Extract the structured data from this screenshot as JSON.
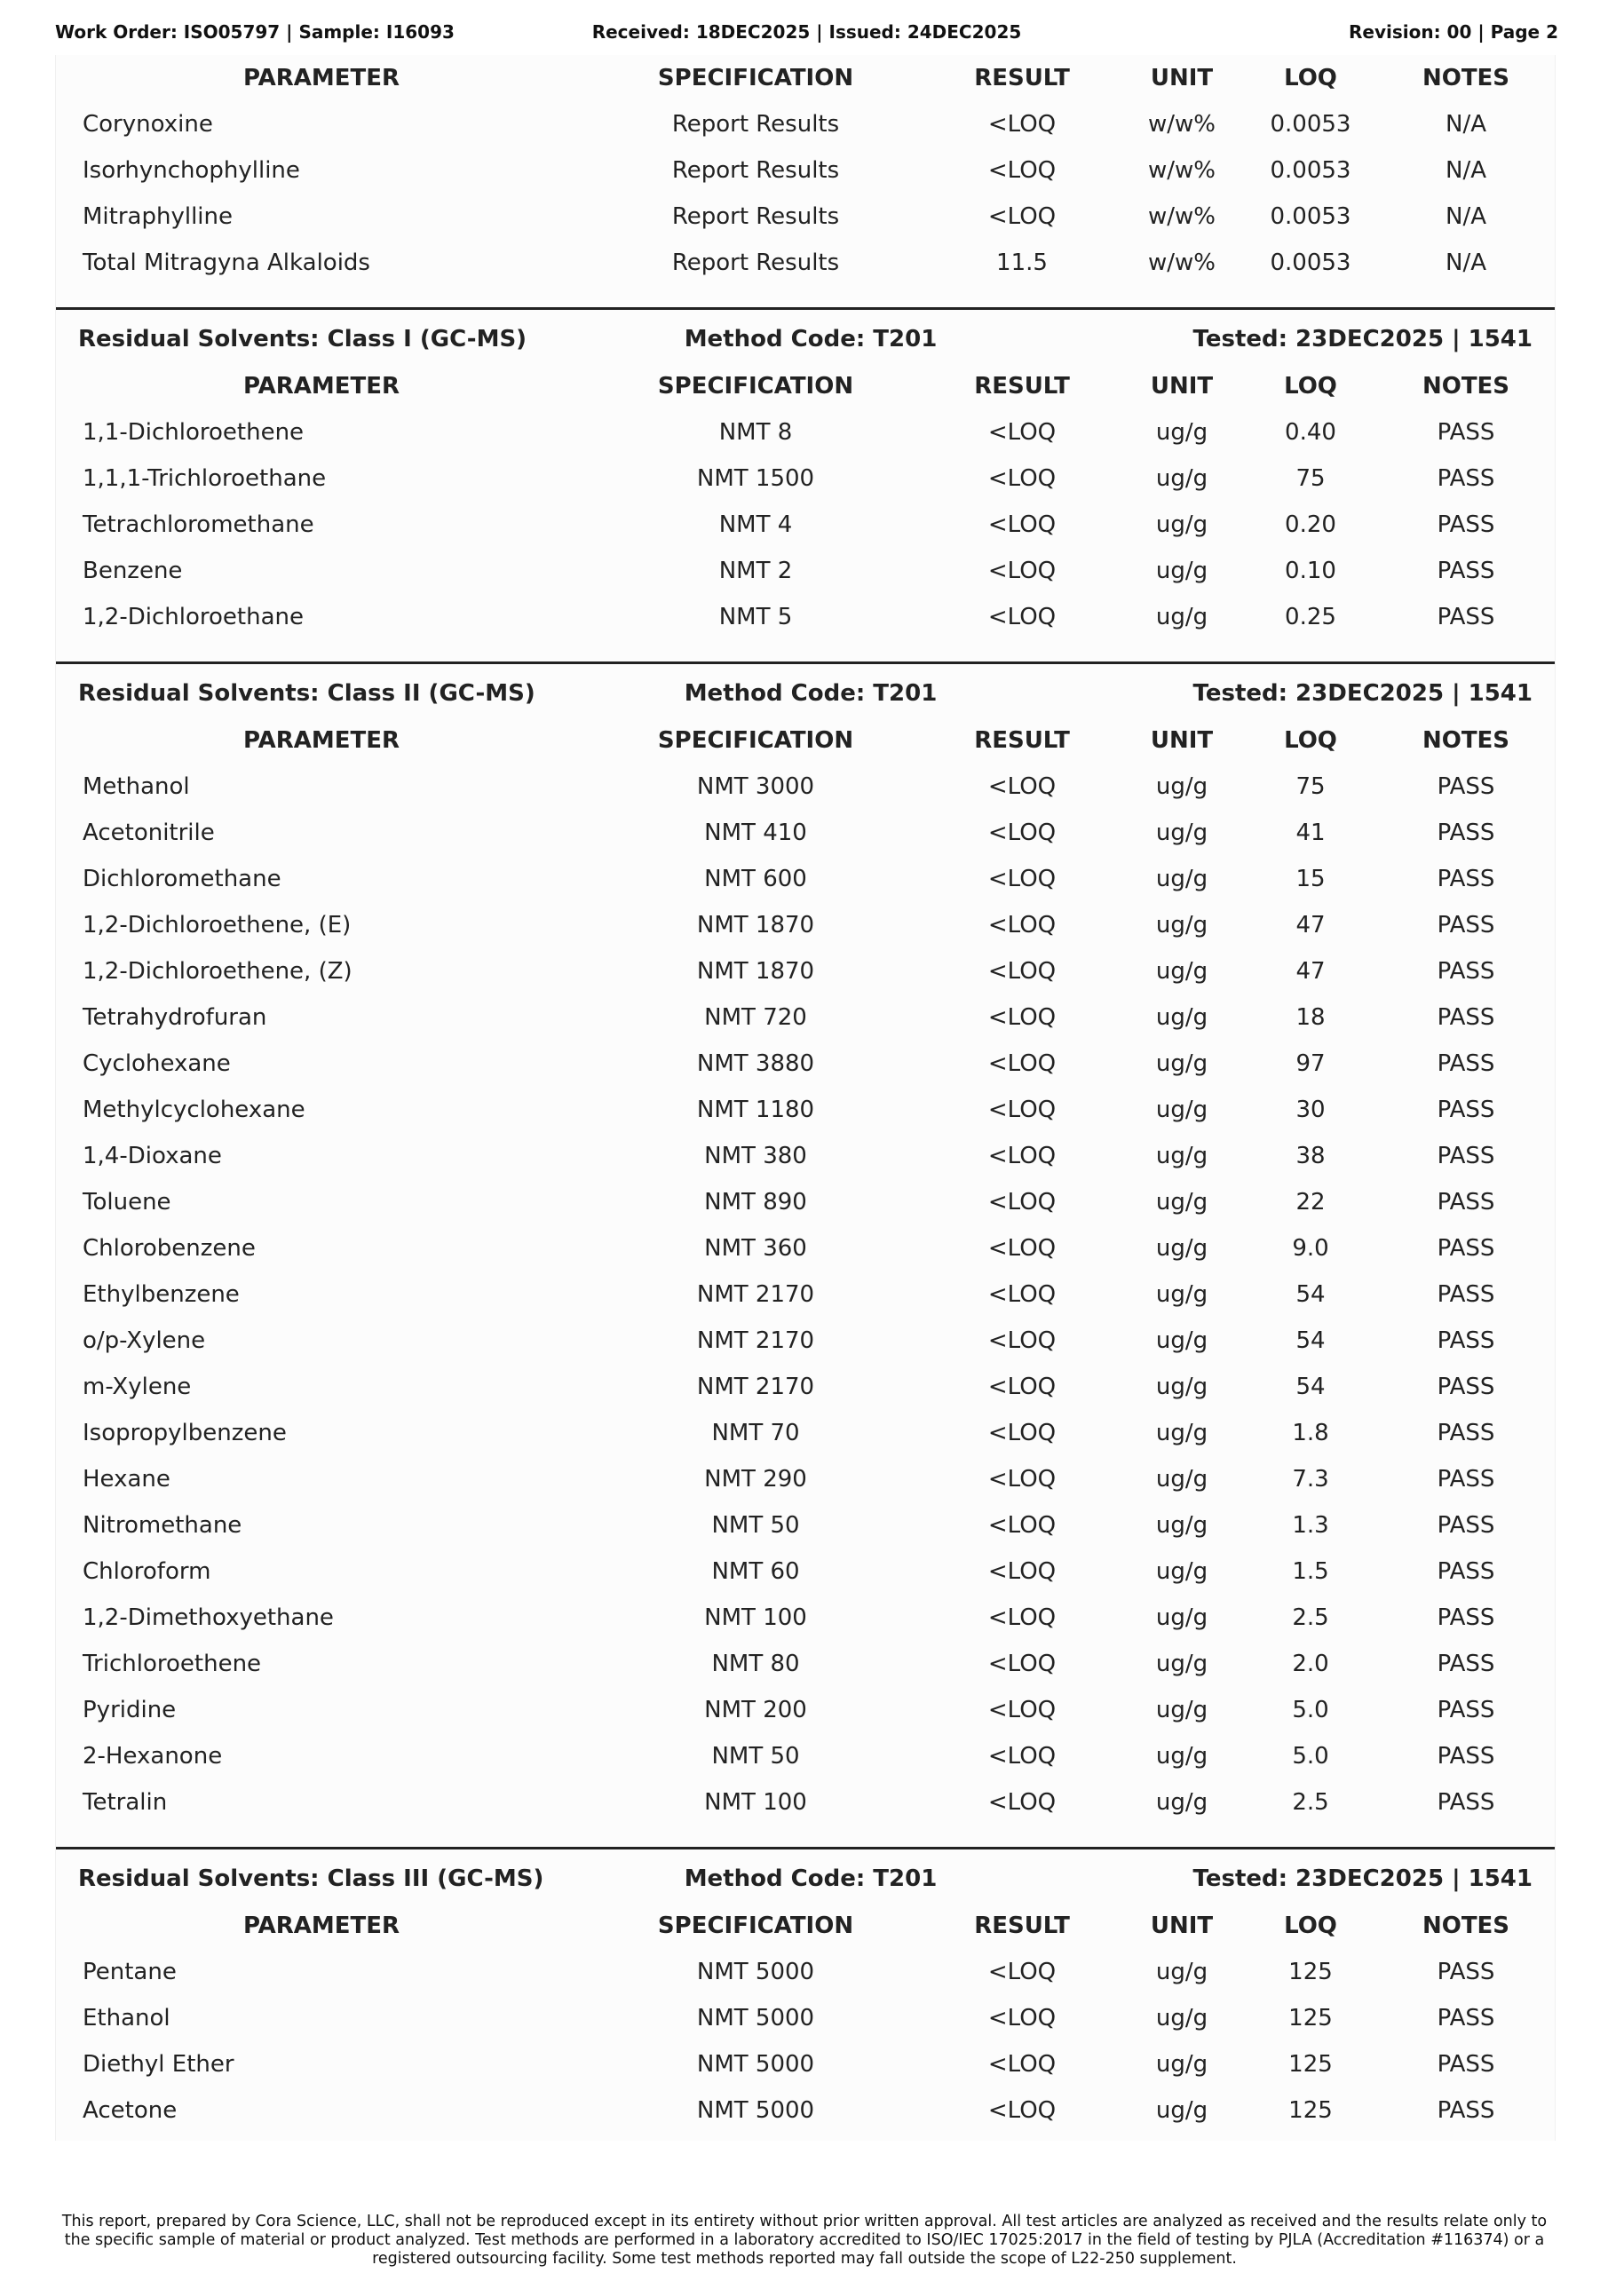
{
  "header": {
    "left": "Work Order: ISO05797 | Sample: I16093",
    "center": "Received: 18DEC2025 | Issued: 24DEC2025",
    "right": "Revision: 00 | Page 2"
  },
  "columns": [
    "PARAMETER",
    "SPECIFICATION",
    "RESULT",
    "UNIT",
    "LOQ",
    "NOTES"
  ],
  "sections": [
    {
      "title": "",
      "method": "",
      "tested": "",
      "rows": [
        [
          "Corynoxine",
          "Report Results",
          "<LOQ",
          "w/w%",
          "0.0053",
          "N/A"
        ],
        [
          "Isorhynchophylline",
          "Report Results",
          "<LOQ",
          "w/w%",
          "0.0053",
          "N/A"
        ],
        [
          "Mitraphylline",
          "Report Results",
          "<LOQ",
          "w/w%",
          "0.0053",
          "N/A"
        ],
        [
          "Total Mitragyna Alkaloids",
          "Report Results",
          "11.5",
          "w/w%",
          "0.0053",
          "N/A"
        ]
      ]
    },
    {
      "title": "Residual Solvents: Class I (GC-MS)",
      "method": "Method Code: T201",
      "tested": "Tested: 23DEC2025 | 1541",
      "rows": [
        [
          "1,1-Dichloroethene",
          "NMT 8",
          "<LOQ",
          "ug/g",
          "0.40",
          "PASS"
        ],
        [
          "1,1,1-Trichloroethane",
          "NMT 1500",
          "<LOQ",
          "ug/g",
          "75",
          "PASS"
        ],
        [
          "Tetrachloromethane",
          "NMT 4",
          "<LOQ",
          "ug/g",
          "0.20",
          "PASS"
        ],
        [
          "Benzene",
          "NMT 2",
          "<LOQ",
          "ug/g",
          "0.10",
          "PASS"
        ],
        [
          "1,2-Dichloroethane",
          "NMT 5",
          "<LOQ",
          "ug/g",
          "0.25",
          "PASS"
        ]
      ]
    },
    {
      "title": "Residual Solvents: Class II (GC-MS)",
      "method": "Method Code: T201",
      "tested": "Tested: 23DEC2025 | 1541",
      "rows": [
        [
          "Methanol",
          "NMT 3000",
          "<LOQ",
          "ug/g",
          "75",
          "PASS"
        ],
        [
          "Acetonitrile",
          "NMT 410",
          "<LOQ",
          "ug/g",
          "41",
          "PASS"
        ],
        [
          "Dichloromethane",
          "NMT 600",
          "<LOQ",
          "ug/g",
          "15",
          "PASS"
        ],
        [
          "1,2-Dichloroethene, (E)",
          "NMT 1870",
          "<LOQ",
          "ug/g",
          "47",
          "PASS"
        ],
        [
          "1,2-Dichloroethene, (Z)",
          "NMT 1870",
          "<LOQ",
          "ug/g",
          "47",
          "PASS"
        ],
        [
          "Tetrahydrofuran",
          "NMT 720",
          "<LOQ",
          "ug/g",
          "18",
          "PASS"
        ],
        [
          "Cyclohexane",
          "NMT 3880",
          "<LOQ",
          "ug/g",
          "97",
          "PASS"
        ],
        [
          "Methylcyclohexane",
          "NMT 1180",
          "<LOQ",
          "ug/g",
          "30",
          "PASS"
        ],
        [
          "1,4-Dioxane",
          "NMT 380",
          "<LOQ",
          "ug/g",
          "38",
          "PASS"
        ],
        [
          "Toluene",
          "NMT 890",
          "<LOQ",
          "ug/g",
          "22",
          "PASS"
        ],
        [
          "Chlorobenzene",
          "NMT 360",
          "<LOQ",
          "ug/g",
          "9.0",
          "PASS"
        ],
        [
          "Ethylbenzene",
          "NMT 2170",
          "<LOQ",
          "ug/g",
          "54",
          "PASS"
        ],
        [
          "o/p-Xylene",
          "NMT 2170",
          "<LOQ",
          "ug/g",
          "54",
          "PASS"
        ],
        [
          "m-Xylene",
          "NMT 2170",
          "<LOQ",
          "ug/g",
          "54",
          "PASS"
        ],
        [
          "Isopropylbenzene",
          "NMT 70",
          "<LOQ",
          "ug/g",
          "1.8",
          "PASS"
        ],
        [
          "Hexane",
          "NMT 290",
          "<LOQ",
          "ug/g",
          "7.3",
          "PASS"
        ],
        [
          "Nitromethane",
          "NMT 50",
          "<LOQ",
          "ug/g",
          "1.3",
          "PASS"
        ],
        [
          "Chloroform",
          "NMT 60",
          "<LOQ",
          "ug/g",
          "1.5",
          "PASS"
        ],
        [
          "1,2-Dimethoxyethane",
          "NMT 100",
          "<LOQ",
          "ug/g",
          "2.5",
          "PASS"
        ],
        [
          "Trichloroethene",
          "NMT 80",
          "<LOQ",
          "ug/g",
          "2.0",
          "PASS"
        ],
        [
          "Pyridine",
          "NMT 200",
          "<LOQ",
          "ug/g",
          "5.0",
          "PASS"
        ],
        [
          "2-Hexanone",
          "NMT 50",
          "<LOQ",
          "ug/g",
          "5.0",
          "PASS"
        ],
        [
          "Tetralin",
          "NMT 100",
          "<LOQ",
          "ug/g",
          "2.5",
          "PASS"
        ]
      ]
    },
    {
      "title": "Residual Solvents: Class III (GC-MS)",
      "method": "Method Code: T201",
      "tested": "Tested: 23DEC2025 | 1541",
      "rows": [
        [
          "Pentane",
          "NMT 5000",
          "<LOQ",
          "ug/g",
          "125",
          "PASS"
        ],
        [
          "Ethanol",
          "NMT 5000",
          "<LOQ",
          "ug/g",
          "125",
          "PASS"
        ],
        [
          "Diethyl Ether",
          "NMT 5000",
          "<LOQ",
          "ug/g",
          "125",
          "PASS"
        ],
        [
          "Acetone",
          "NMT 5000",
          "<LOQ",
          "ug/g",
          "125",
          "PASS"
        ]
      ]
    }
  ],
  "footer": "This report, prepared by Cora Science, LLC, shall not be reproduced except in its entirety without prior written approval. All test articles are analyzed as received and the results relate only to the specific sample of material or product analyzed. Test methods are performed in a laboratory accredited to ISO/IEC 17025:2017 in the field of testing by PJLA (Accreditation #116374) or a registered outsourcing facility. Some test methods reported may fall outside the scope of L22-250 supplement."
}
